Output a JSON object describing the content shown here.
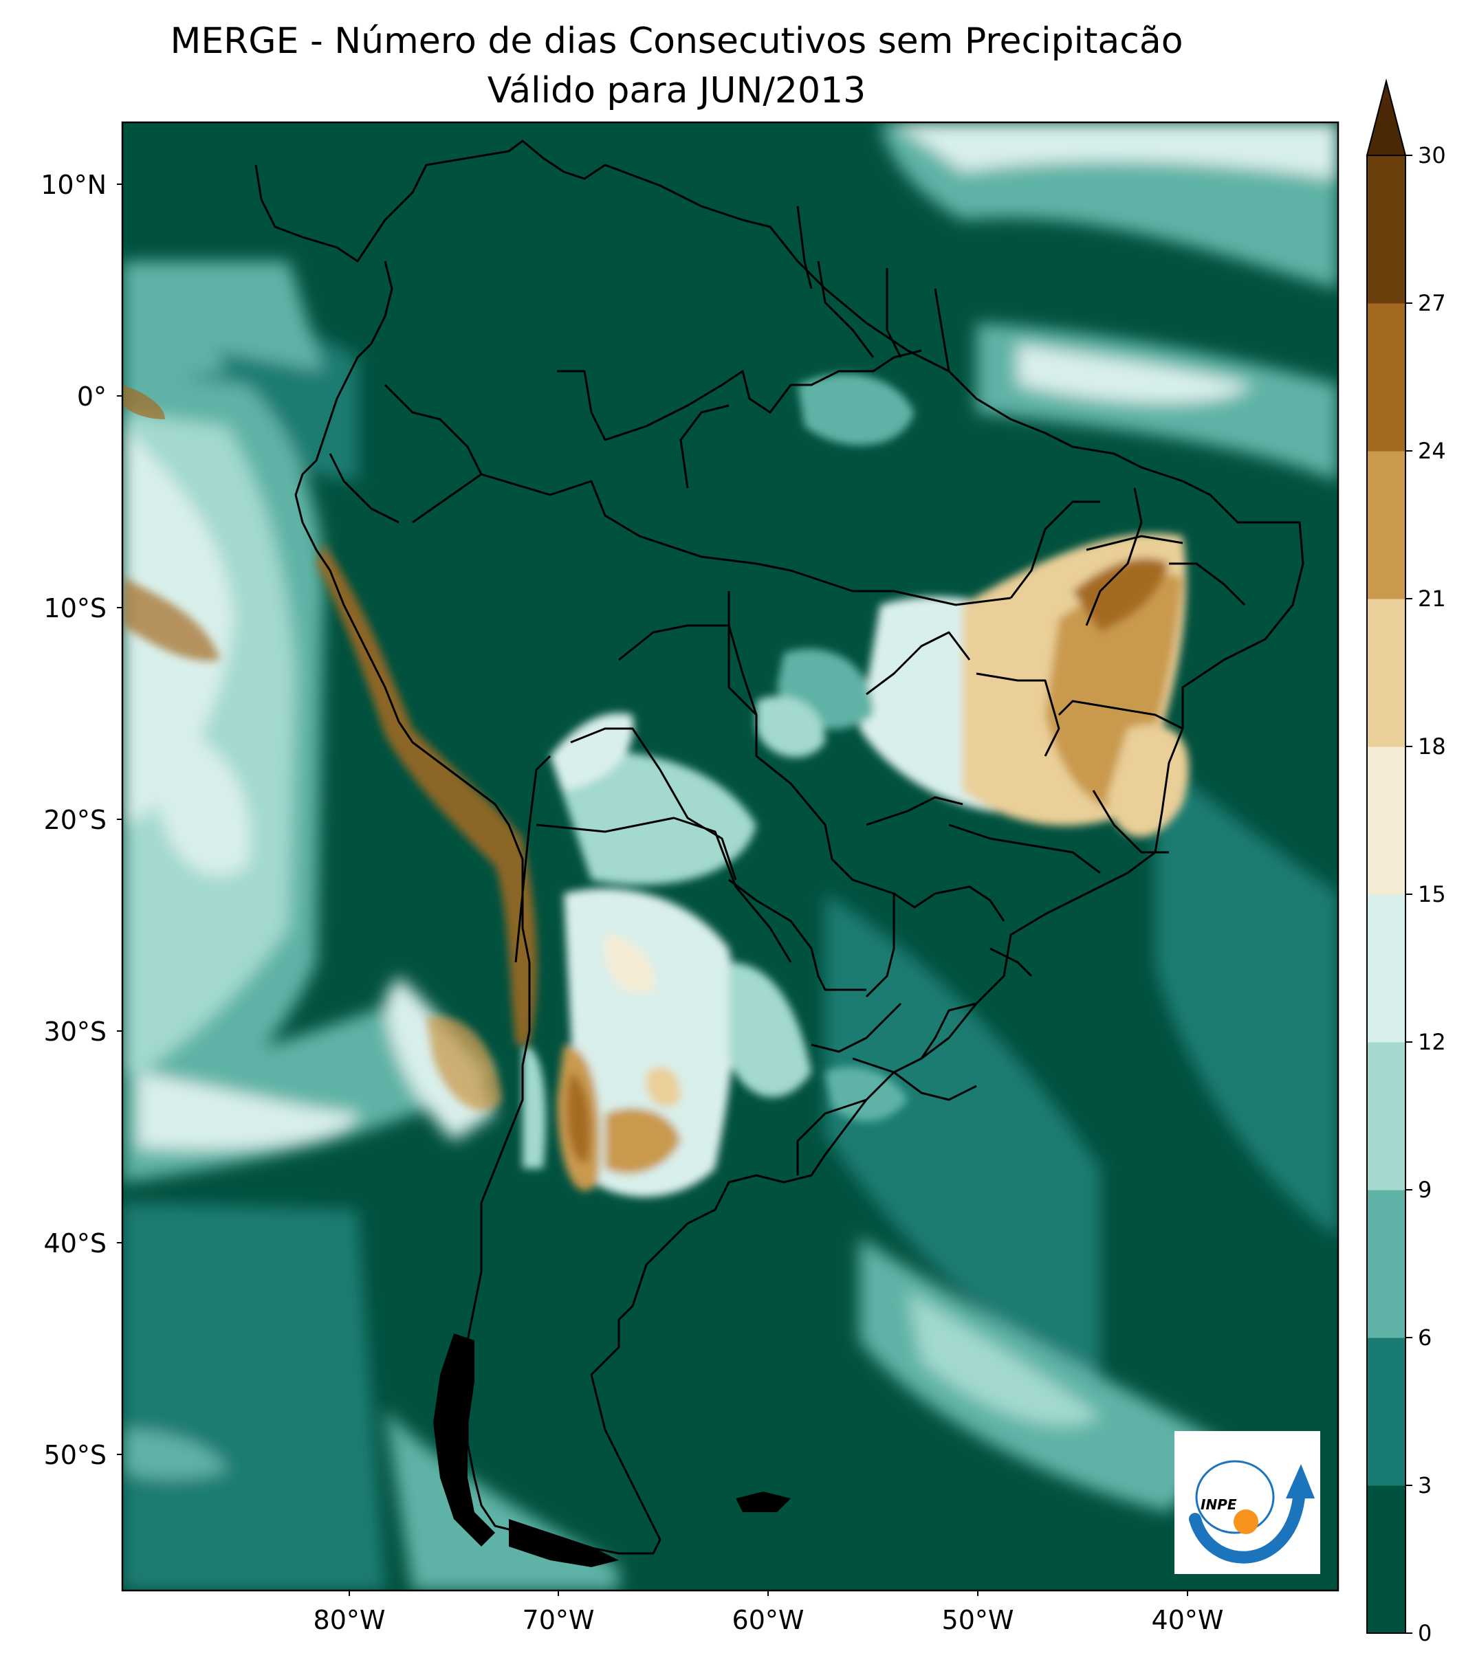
{
  "title": {
    "line1": "MERGE - Número de dias Consecutivos sem Precipitacão",
    "line2": "Válido para JUN/2013"
  },
  "map": {
    "lat_labels": [
      "10°N",
      "0°",
      "10°S",
      "20°S",
      "30°S",
      "40°S",
      "50°S"
    ],
    "lon_labels": [
      "80°W",
      "70°W",
      "60°W",
      "50°W",
      "40°W"
    ],
    "extent": {
      "lon_min": -90,
      "lon_max": -32,
      "lat_min": -57,
      "lat_max": 13
    }
  },
  "colorbar": {
    "ticks": [
      "0",
      "3",
      "6",
      "9",
      "12",
      "15",
      "18",
      "21",
      "24",
      "27",
      "30"
    ],
    "colors": [
      "#01513f",
      "#1a7b72",
      "#5fb3a6",
      "#a3d9cf",
      "#d9efeb",
      "#f5ecd6",
      "#eacf98",
      "#c99a4e",
      "#a56a22",
      "#6b3f0c"
    ],
    "extend": "max"
  },
  "logo": {
    "text": "INPE"
  }
}
